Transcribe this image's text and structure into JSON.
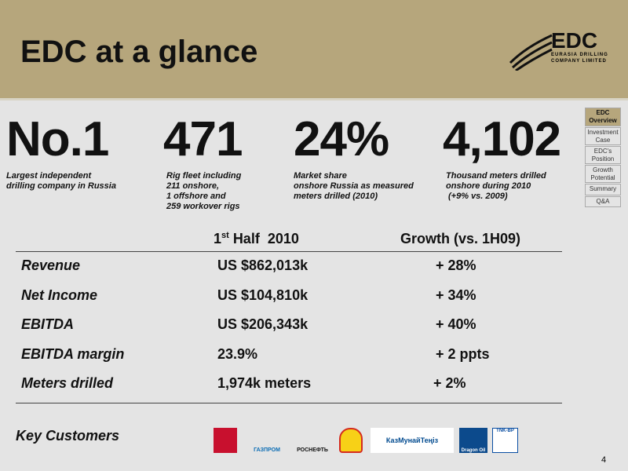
{
  "header": {
    "title": "EDC at a glance",
    "logo": {
      "mark": "EDC",
      "line1": "EURASIA DRILLING",
      "line2": "COMPANY LIMITED"
    }
  },
  "stats": [
    {
      "value": "No.1",
      "description": [
        "Largest independent",
        "drilling company in Russia"
      ]
    },
    {
      "value": "471",
      "description": [
        "Rig fleet including",
        "211 onshore,",
        "1 offshore and",
        "259 workover rigs"
      ]
    },
    {
      "value": "24%",
      "description": [
        "Market share",
        "onshore Russia as measured",
        "meters drilled (2010)"
      ]
    },
    {
      "value": "4,102",
      "description": [
        "Thousand meters drilled",
        "onshore during 2010",
        "(+9% vs. 2009)"
      ]
    }
  ],
  "nav": [
    "EDC Overview",
    "Investment Case",
    "EDC's Position",
    "Growth Potential",
    "Summary",
    "Q&A"
  ],
  "table": {
    "header": {
      "period": {
        "main": "1",
        "sup": "st",
        "rest": "Half  2010"
      },
      "growth": "Growth (vs. 1H09)"
    },
    "rows": [
      [
        "Revenue",
        "US $862,013k",
        "+ 28%"
      ],
      [
        "Net Income",
        "US $104,810k",
        "+ 34%"
      ],
      [
        "EBITDA",
        "US $206,343k",
        "+ 40%"
      ],
      [
        "EBITDA margin",
        "23.9%",
        "+ 2 ppts"
      ],
      [
        "Meters drilled",
        "1,974k meters",
        "+ 2%"
      ]
    ]
  },
  "customers": {
    "label": "Key Customers",
    "logos": [
      "ГАЗПРОМ",
      "РОСНЕФТЬ",
      "КазМунайТеңіз",
      "Dragon Oil",
      "TNK-BP"
    ]
  },
  "page_number": "4"
}
